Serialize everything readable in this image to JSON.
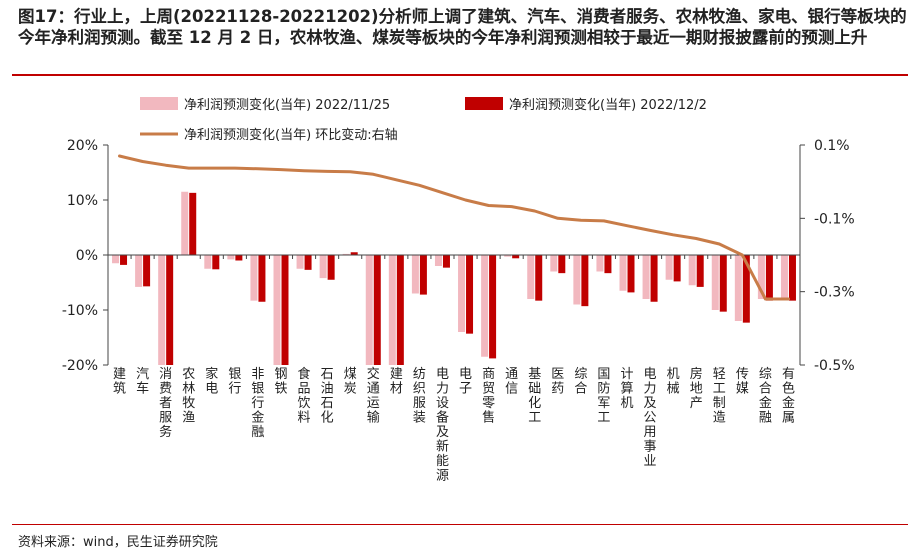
{
  "title": "图17：行业上，上周(20221128-20221202)分析师上调了建筑、汽车、消费者服务、农林牧渔、家电、银行等板块的今年净利润预测。截至 12 月 2 日，农林牧渔、煤炭等板块的今年净利润预测相较于最近一期财报披露前的预测上升",
  "source": "资料来源：wind，民生证券研究院",
  "colors": {
    "series1": "#f2b8bf",
    "series2": "#c00000",
    "line": "#c87c48",
    "rule": "#c00000"
  },
  "chart_data": {
    "type": "bar",
    "categories": [
      "建筑",
      "汽车",
      "消费者服务",
      "农林牧渔",
      "家电",
      "银行",
      "非银行金融",
      "钢铁",
      "食品饮料",
      "石油石化",
      "煤炭",
      "交通运输",
      "建材",
      "纺织服装",
      "电力设备及新能源",
      "电子",
      "商贸零售",
      "通信",
      "基础化工",
      "医药",
      "综合",
      "国防军工",
      "计算机",
      "电力及公用事业",
      "机械",
      "房地产",
      "轻工制造",
      "传媒",
      "综合金融",
      "有色金属"
    ],
    "series": [
      {
        "name": "净利润预测变化(当年) 2022/11/25",
        "axis": "left",
        "values": [
          -1.5,
          -5.8,
          -20.5,
          11.5,
          -2.5,
          -0.8,
          -8.3,
          -20.5,
          -2.5,
          -4.2,
          0.2,
          -20.5,
          -20.5,
          -7.0,
          -2.0,
          -14.0,
          -18.5,
          -0.3,
          -8.0,
          -3.0,
          -9.0,
          -3.0,
          -6.5,
          -8.0,
          -4.5,
          -5.5,
          -10.0,
          -12.0,
          -8.0,
          -8.0
        ]
      },
      {
        "name": "净利润预测变化(当年) 2022/12/2",
        "axis": "left",
        "values": [
          -1.8,
          -5.7,
          -20.5,
          11.3,
          -2.6,
          -1.0,
          -8.5,
          -20.5,
          -2.7,
          -4.5,
          0.5,
          -20.5,
          -20.5,
          -7.2,
          -2.3,
          -14.3,
          -18.8,
          -0.6,
          -8.3,
          -3.3,
          -9.3,
          -3.3,
          -6.8,
          -8.5,
          -4.8,
          -5.8,
          -10.3,
          -12.3,
          -8.3,
          -8.3
        ]
      },
      {
        "name": "净利润预测变化(当年) 环比变动:右轴",
        "axis": "right",
        "type": "line",
        "values": [
          0.07,
          0.055,
          0.045,
          0.037,
          0.037,
          0.037,
          0.035,
          0.033,
          0.03,
          0.028,
          0.027,
          0.02,
          0.005,
          -0.01,
          -0.03,
          -0.05,
          -0.065,
          -0.068,
          -0.08,
          -0.1,
          -0.105,
          -0.107,
          -0.12,
          -0.133,
          -0.145,
          -0.155,
          -0.17,
          -0.2,
          -0.32,
          -0.32
        ]
      }
    ],
    "left_axis": {
      "ylim": [
        -20,
        20
      ],
      "ticks": [
        20,
        10,
        0,
        -10,
        -20
      ],
      "tick_labels": [
        "20%",
        "10%",
        "0%",
        "-10%",
        "-20%"
      ]
    },
    "right_axis": {
      "ylim": [
        -0.5,
        0.1
      ],
      "ticks": [
        0.1,
        -0.1,
        -0.3,
        -0.5
      ],
      "tick_labels": [
        "0.1%",
        "-0.1%",
        "-0.3%",
        "-0.5%"
      ]
    },
    "legend": [
      "净利润预测变化(当年) 2022/11/25",
      "净利润预测变化(当年) 2022/12/2",
      "净利润预测变化(当年) 环比变动:右轴"
    ],
    "legend_position": "top"
  }
}
